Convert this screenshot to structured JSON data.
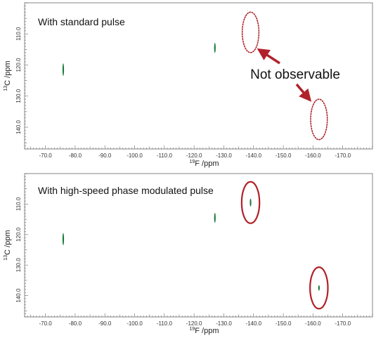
{
  "chart_data": [
    {
      "type": "scatter",
      "title": "With standard pulse",
      "xlabel": "19F /ppm",
      "ylabel": "13C /ppm",
      "x_sup": "19",
      "x_unit": "F /ppm",
      "y_sup": "13",
      "y_unit": "C /ppm",
      "xlim": [
        -63,
        -180
      ],
      "ylim": [
        100,
        147
      ],
      "x_ticks": [
        -70,
        -80,
        -90,
        -100,
        -110,
        -120,
        -130,
        -140,
        -150,
        -160,
        -170
      ],
      "x_tick_labels": [
        "-70.0",
        "-80.0",
        "-90.0",
        "-100.0",
        "-110.0",
        "-120.0",
        "-130.0",
        "-140.0",
        "-150.0",
        "-160.0",
        "-170.0"
      ],
      "y_ticks": [
        110,
        120,
        130,
        140
      ],
      "y_tick_labels": [
        "110.0",
        "120.0",
        "130.0",
        "140.0"
      ],
      "peaks": [
        {
          "x": -76.0,
          "y": 121.5,
          "dy": 2.0
        },
        {
          "x": -127.0,
          "y": 114.5,
          "dy": 1.6
        }
      ],
      "missing_peaks": [
        {
          "x": -139.0,
          "y": 109.5,
          "rx": 2.8,
          "ry": 6.5
        },
        {
          "x": -162.0,
          "y": 137.5,
          "rx": 2.8,
          "ry": 6.5
        }
      ],
      "annotation": "Not observable",
      "colors": {
        "peak": "#1a7a3a",
        "marker": "#b0222a",
        "axis": "#666666"
      }
    },
    {
      "type": "scatter",
      "title": "With high-speed phase modulated pulse",
      "xlabel": "19F /ppm",
      "ylabel": "13C /ppm",
      "x_sup": "19",
      "x_unit": "F /ppm",
      "y_sup": "13",
      "y_unit": "C /ppm",
      "xlim": [
        -63,
        -180
      ],
      "ylim": [
        100,
        147
      ],
      "x_ticks": [
        -70,
        -80,
        -90,
        -100,
        -110,
        -120,
        -130,
        -140,
        -150,
        -160,
        -170
      ],
      "x_tick_labels": [
        "-70.0",
        "-80.0",
        "-90.0",
        "-100.0",
        "-110.0",
        "-120.0",
        "-130.0",
        "-140.0",
        "-150.0",
        "-160.0",
        "-170.0"
      ],
      "y_ticks": [
        110,
        120,
        130,
        140
      ],
      "y_tick_labels": [
        "110.0",
        "120.0",
        "130.0",
        "140.0"
      ],
      "peaks": [
        {
          "x": -76.0,
          "y": 121.5,
          "dy": 2.0
        },
        {
          "x": -127.0,
          "y": 114.5,
          "dy": 1.6
        },
        {
          "x": -139.0,
          "y": 109.5,
          "dy": 1.3
        },
        {
          "x": -162.0,
          "y": 137.5,
          "dy": 0.9
        }
      ],
      "circled_peaks": [
        {
          "x": -139.0,
          "y": 109.5,
          "rx": 3.0,
          "ry": 6.8
        },
        {
          "x": -162.0,
          "y": 137.5,
          "rx": 3.0,
          "ry": 6.8
        }
      ],
      "colors": {
        "peak": "#1a7a3a",
        "marker": "#b0222a",
        "axis": "#666666"
      }
    }
  ]
}
